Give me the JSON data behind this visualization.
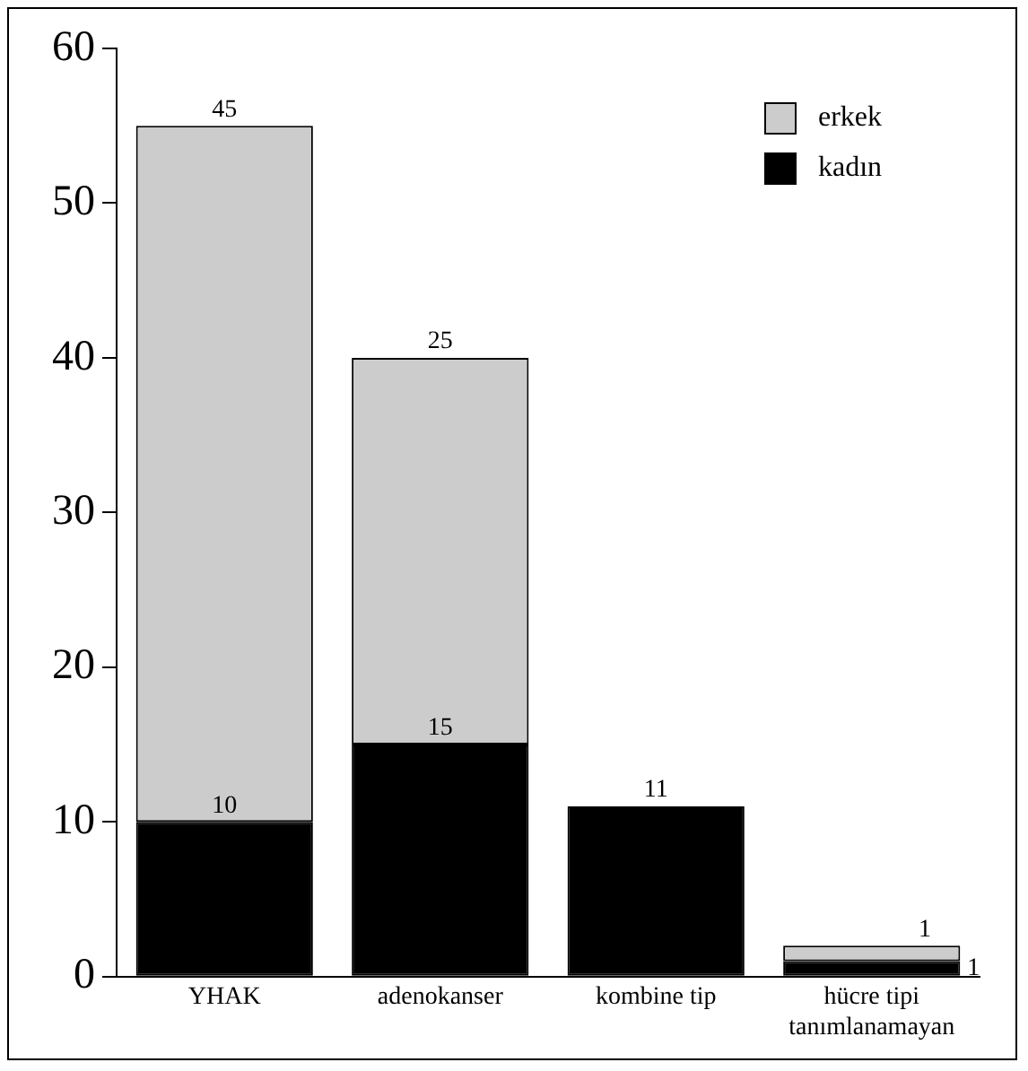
{
  "chart_data": {
    "type": "bar",
    "stacked": true,
    "categories": [
      "YHAK",
      "adenokanser",
      "kombine tip",
      "hücre tipi tanımlanamayan"
    ],
    "series": [
      {
        "name": "kadın",
        "color": "#000000",
        "values": [
          10,
          15,
          11,
          1
        ]
      },
      {
        "name": "erkek",
        "color": "#cccccc",
        "values": [
          45,
          25,
          null,
          1
        ]
      }
    ],
    "ylim": [
      0,
      60
    ],
    "yticks": [
      0,
      10,
      20,
      30,
      40,
      50,
      60
    ],
    "grid": false,
    "legend": "top right",
    "data_labels": true
  }
}
